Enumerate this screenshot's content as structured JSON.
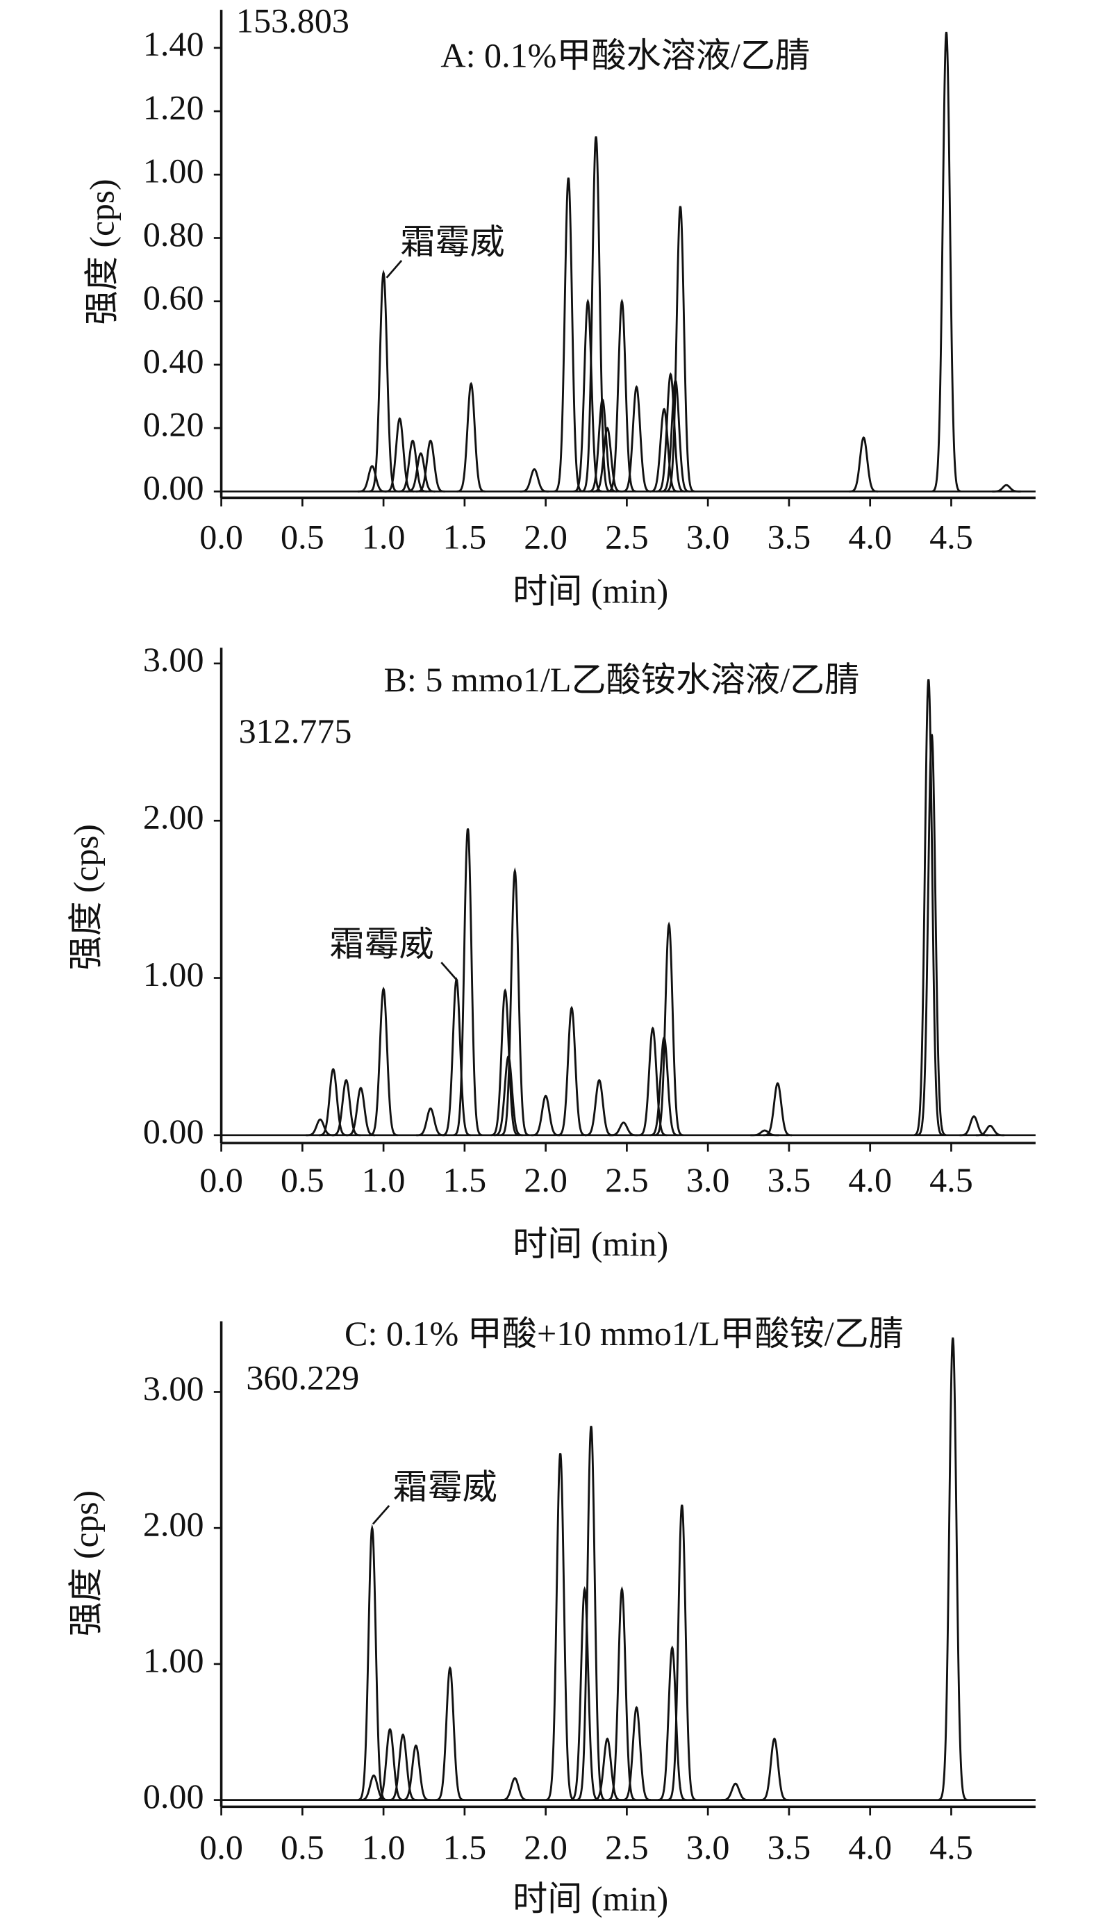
{
  "chart_data": [
    {
      "type": "chromatogram",
      "title": "A: 0.1%甲酸水溶液/乙腈",
      "annotations": [
        "153.803",
        "霜霉威"
      ],
      "xlabel": "时间 (min)",
      "ylabel": "强度 (cps)",
      "color": "#111111",
      "x": [
        0.93,
        1.0,
        1.1,
        1.18,
        1.23,
        1.29,
        1.54,
        1.93,
        2.14,
        2.26,
        2.31,
        2.35,
        2.38,
        2.47,
        2.56,
        2.73,
        2.77,
        2.8,
        2.83,
        3.96,
        4.47,
        4.84
      ],
      "values": [
        0.08,
        0.69,
        0.23,
        0.16,
        0.12,
        0.16,
        0.34,
        0.07,
        0.99,
        0.6,
        1.12,
        0.29,
        0.2,
        0.6,
        0.33,
        0.26,
        0.37,
        0.35,
        0.9,
        0.17,
        1.45,
        0.02
      ],
      "xlim": [
        0,
        5.02
      ],
      "ylim": [
        -0.02,
        1.52
      ],
      "xticks": [
        {
          "value": 0,
          "label": "0.0"
        },
        0.5,
        {
          "value": 1,
          "label": "1.0"
        },
        1.5,
        {
          "value": 2,
          "label": "2.0"
        },
        2.5,
        {
          "value": 3,
          "label": "3.0"
        },
        3.5,
        {
          "value": 4,
          "label": "4.0"
        },
        4.5
      ],
      "yticks": [
        {
          "value": 0,
          "label": "0.00"
        },
        {
          "value": 0.2,
          "label": "0.20"
        },
        {
          "value": 0.4,
          "label": "0.40"
        },
        {
          "value": 0.6,
          "label": "0.60"
        },
        {
          "value": 0.8,
          "label": "0.80"
        },
        {
          "value": 1.0,
          "label": "1.00"
        },
        {
          "value": 1.2,
          "label": "1.20"
        },
        {
          "value": 1.4,
          "label": "1.40"
        }
      ]
    },
    {
      "type": "chromatogram",
      "title": "B: 5 mmo1/L乙酸铵水溶液/乙腈",
      "annotations": [
        "312.775",
        "霜霉威"
      ],
      "xlabel": "时间 (min)",
      "ylabel": "强度 (cps)",
      "color": "#111111",
      "x": [
        0.61,
        0.69,
        0.77,
        0.86,
        1.0,
        1.29,
        1.45,
        1.52,
        1.75,
        1.77,
        1.81,
        2.0,
        2.16,
        2.33,
        2.48,
        2.66,
        2.73,
        2.76,
        3.35,
        3.43,
        4.36,
        4.38,
        4.64,
        4.74
      ],
      "values": [
        0.1,
        0.42,
        0.35,
        0.3,
        0.93,
        0.17,
        0.99,
        1.95,
        0.92,
        0.5,
        1.68,
        0.25,
        0.81,
        0.35,
        0.08,
        0.68,
        0.62,
        1.34,
        0.03,
        0.33,
        2.9,
        2.55,
        0.12,
        0.06
      ],
      "xlim": [
        0,
        5.02
      ],
      "ylim": [
        -0.05,
        3.1
      ],
      "xticks": [
        {
          "value": 0,
          "label": "0.0"
        },
        0.5,
        {
          "value": 1,
          "label": "1.0"
        },
        1.5,
        {
          "value": 2,
          "label": "2.0"
        },
        2.5,
        {
          "value": 3,
          "label": "3.0"
        },
        3.5,
        {
          "value": 4,
          "label": "4.0"
        },
        4.5
      ],
      "yticks": [
        {
          "value": 0,
          "label": "0.00"
        },
        {
          "value": 1,
          "label": "1.00"
        },
        {
          "value": 2,
          "label": "2.00"
        },
        {
          "value": 3,
          "label": "3.00"
        }
      ]
    },
    {
      "type": "chromatogram",
      "title": "C: 0.1% 甲酸+10 mmo1/L甲酸铵/乙腈",
      "annotations": [
        "360.229",
        "霜霉威"
      ],
      "xlabel": "时间 (min)",
      "ylabel": "强度 (cps)",
      "color": "#111111",
      "x": [
        0.94,
        0.93,
        1.04,
        1.12,
        1.2,
        1.41,
        1.81,
        2.09,
        2.24,
        2.28,
        2.38,
        2.47,
        2.56,
        2.78,
        2.84,
        3.17,
        3.41,
        4.51
      ],
      "values": [
        0.18,
        2.0,
        0.52,
        0.48,
        0.4,
        0.97,
        0.16,
        2.55,
        1.55,
        2.75,
        0.45,
        1.55,
        0.68,
        1.12,
        2.17,
        0.12,
        0.45,
        3.4
      ],
      "xlim": [
        0,
        5.02
      ],
      "ylim": [
        -0.05,
        3.52
      ],
      "xticks": [
        {
          "value": 0,
          "label": "0.0"
        },
        0.5,
        {
          "value": 1,
          "label": "1.0"
        },
        1.5,
        {
          "value": 2,
          "label": "2.0"
        },
        2.5,
        {
          "value": 3,
          "label": "3.0"
        },
        3.5,
        {
          "value": 4,
          "label": "4.0"
        },
        4.5
      ],
      "yticks": [
        {
          "value": 0,
          "label": "0.00"
        },
        {
          "value": 1,
          "label": "1.00"
        },
        {
          "value": 2,
          "label": "2.00"
        },
        {
          "value": 3,
          "label": "3.00"
        }
      ]
    }
  ]
}
